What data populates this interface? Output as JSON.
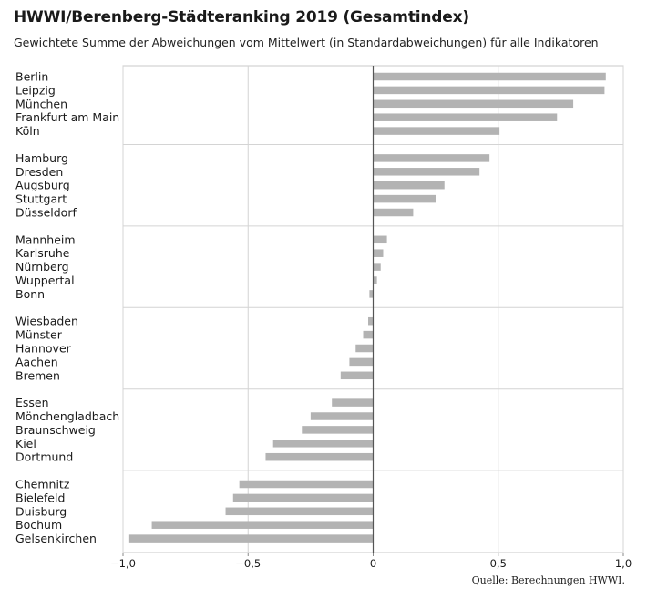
{
  "chart_data": {
    "type": "bar",
    "orientation": "horizontal",
    "title": "HWWI/Berenberg-Städteranking 2019 (Gesamtindex)",
    "subtitle": "Gewichtete Summe der Abweichungen vom Mittelwert (in Standardabweichungen) für alle Indikatoren",
    "source": "Quelle: Berechnungen HWWI.",
    "bar_color": "#b3b3b3",
    "xlim": [
      -1.0,
      1.0
    ],
    "ticks": [
      -1.0,
      -0.5,
      0,
      0.5,
      1.0
    ],
    "tick_labels": [
      "−1,0",
      "−0,5",
      "0",
      "0,5",
      "1,0"
    ],
    "grid": true,
    "groups": [
      {
        "categories": [
          "Berlin",
          "Leipzig",
          "München",
          "Frankfurt am Main",
          "Köln"
        ],
        "values": [
          0.93,
          0.925,
          0.8,
          0.735,
          0.505
        ]
      },
      {
        "categories": [
          "Hamburg",
          "Dresden",
          "Augsburg",
          "Stuttgart",
          "Düsseldorf"
        ],
        "values": [
          0.465,
          0.425,
          0.285,
          0.25,
          0.16
        ]
      },
      {
        "categories": [
          "Mannheim",
          "Karlsruhe",
          "Nürnberg",
          "Wuppertal",
          "Bonn"
        ],
        "values": [
          0.055,
          0.04,
          0.03,
          0.015,
          -0.015
        ]
      },
      {
        "categories": [
          "Wiesbaden",
          "Münster",
          "Hannover",
          "Aachen",
          "Bremen"
        ],
        "values": [
          -0.02,
          -0.04,
          -0.07,
          -0.095,
          -0.13
        ]
      },
      {
        "categories": [
          "Essen",
          "Mönchengladbach",
          "Braunschweig",
          "Kiel",
          "Dortmund"
        ],
        "values": [
          -0.165,
          -0.25,
          -0.285,
          -0.4,
          -0.43
        ]
      },
      {
        "categories": [
          "Chemnitz",
          "Bielefeld",
          "Duisburg",
          "Bochum",
          "Gelsenkirchen"
        ],
        "values": [
          -0.535,
          -0.56,
          -0.59,
          -0.885,
          -0.975
        ]
      }
    ]
  }
}
